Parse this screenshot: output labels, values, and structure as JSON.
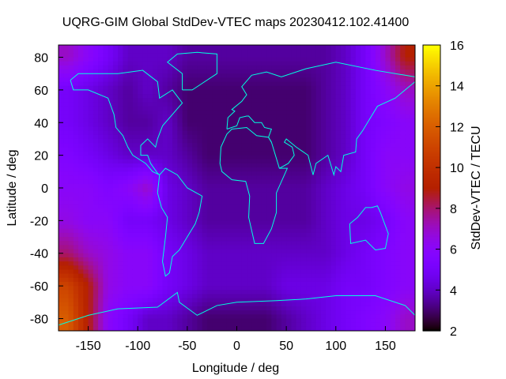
{
  "chart_data": {
    "type": "heatmap",
    "title": "UQRG-GIM Global StdDev-VTEC maps 20230412.102.41400",
    "xlabel": "Longitude / deg",
    "ylabel": "Latitude / deg",
    "colorbar_label": "StdDev-VTEC / TECU",
    "xlim": [
      -180,
      180
    ],
    "ylim": [
      -87.5,
      87.5
    ],
    "xticks": [
      -150,
      -100,
      -50,
      0,
      50,
      100,
      150
    ],
    "yticks": [
      -80,
      -60,
      -40,
      -20,
      0,
      20,
      40,
      60,
      80
    ],
    "colorbar_range": [
      2,
      16
    ],
    "colorbar_ticks": [
      2,
      4,
      6,
      8,
      10,
      12,
      14,
      16
    ],
    "palette": "black-blue-purple-red-orange-yellow",
    "coastline_color": "#00ffe0",
    "lon": [
      -170,
      -150,
      -130,
      -110,
      -90,
      -70,
      -50,
      -30,
      -10,
      10,
      30,
      50,
      70,
      90,
      110,
      130,
      150,
      170
    ],
    "lat": [
      80,
      60,
      40,
      20,
      0,
      -20,
      -40,
      -60,
      -80
    ],
    "values": [
      [
        7,
        6,
        5,
        4,
        4,
        4,
        3.5,
        3.5,
        3.5,
        3.5,
        3.5,
        3.5,
        3.5,
        3.5,
        4,
        5,
        7,
        9
      ],
      [
        5,
        4.5,
        4,
        3.5,
        4,
        3.5,
        3,
        3,
        3,
        3,
        3,
        3,
        3,
        3.5,
        4,
        5,
        6,
        7
      ],
      [
        5,
        4.5,
        4,
        3.5,
        3.5,
        4,
        3,
        3,
        3,
        3,
        3,
        3,
        3,
        3.5,
        4,
        5,
        5.5,
        6
      ],
      [
        5.5,
        5,
        4.5,
        4,
        4,
        4,
        3.5,
        3,
        3,
        3,
        3,
        3,
        3,
        3.5,
        4,
        5,
        6,
        6
      ],
      [
        6,
        6,
        5.5,
        6,
        7,
        4.5,
        4,
        3.5,
        3.5,
        3.5,
        3.5,
        3.5,
        3.5,
        4,
        4.5,
        5,
        6,
        6.5
      ],
      [
        6.5,
        6,
        6,
        5,
        5,
        4.5,
        4,
        3.5,
        3.5,
        3.5,
        3.5,
        3.5,
        3.5,
        4,
        4.5,
        4.5,
        5,
        6
      ],
      [
        8,
        7,
        6.5,
        6,
        6,
        5,
        4.5,
        4,
        4,
        4,
        4,
        4,
        4,
        4,
        4.5,
        5,
        5.5,
        6
      ],
      [
        11,
        9,
        6.5,
        6,
        6,
        5,
        4.5,
        4,
        4,
        4,
        4,
        4.5,
        4.5,
        4.5,
        5,
        5,
        5.5,
        6
      ],
      [
        12,
        9,
        6,
        5,
        4,
        4,
        3.5,
        3,
        3,
        3,
        3,
        3.5,
        4,
        4.5,
        5,
        5.5,
        6,
        7
      ]
    ]
  }
}
